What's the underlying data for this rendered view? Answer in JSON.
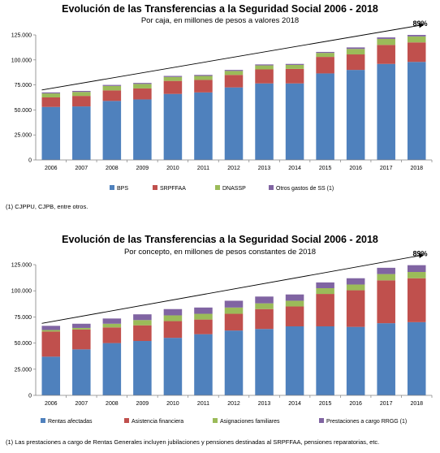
{
  "chart_data": [
    {
      "type": "bar",
      "stacked": true,
      "title": "Evolución de las Transferencias a la Seguridad Social 2006 - 2018",
      "subtitle": "Por caja, en millones de pesos a valores 2018",
      "categories": [
        "2006",
        "2007",
        "2008",
        "2009",
        "2010",
        "2011",
        "2012",
        "2013",
        "2014",
        "2015",
        "2016",
        "2017",
        "2018"
      ],
      "series": [
        {
          "name": "BPS",
          "color": "#4F81BD",
          "values": [
            53000,
            53500,
            59000,
            60500,
            66000,
            67500,
            72500,
            76500,
            76500,
            86500,
            90000,
            96000,
            98000
          ]
        },
        {
          "name": "SRPFFAA",
          "color": "#C0504D",
          "values": [
            9500,
            10500,
            10500,
            11000,
            13000,
            12500,
            12500,
            14000,
            14500,
            16500,
            15500,
            19000,
            19500
          ]
        },
        {
          "name": "DNASSP",
          "color": "#9BBB59",
          "values": [
            4000,
            4000,
            4500,
            4500,
            4000,
            4000,
            4000,
            4000,
            4000,
            4000,
            5500,
            6000,
            6000
          ]
        },
        {
          "name": "Otros gastos de SS (1)",
          "color": "#8064A2",
          "values": [
            1000,
            1000,
            1000,
            1000,
            1000,
            1000,
            1000,
            1000,
            1000,
            1000,
            1500,
            1500,
            1500
          ]
        }
      ],
      "yticks": [
        "0",
        "25.000",
        "50.000",
        "75.000",
        "100.000",
        "125.000"
      ],
      "ylim": [
        0,
        125000
      ],
      "annotation": "89%",
      "legend_position": "bottom",
      "footnote": "(1) CJPPU, CJPB, entre otros."
    },
    {
      "type": "bar",
      "stacked": true,
      "title": "Evolución de las Transferencias a la Seguridad Social 2006 - 2018",
      "subtitle": "Por concepto, en millones de pesos constantes de 2018",
      "categories": [
        "2006",
        "2007",
        "2008",
        "2009",
        "2010",
        "2011",
        "2012",
        "2013",
        "2014",
        "2015",
        "2016",
        "2017",
        "2018"
      ],
      "series": [
        {
          "name": "Rentas afectadas",
          "color": "#4F81BD",
          "values": [
            37000,
            44000,
            50000,
            52000,
            55000,
            58500,
            62000,
            63500,
            66000,
            66000,
            65500,
            69000,
            70000
          ]
        },
        {
          "name": "Asistencia financiera",
          "color": "#C0504D",
          "values": [
            24000,
            19000,
            15000,
            15000,
            16000,
            14000,
            16000,
            19000,
            19000,
            31000,
            35000,
            41000,
            42000
          ]
        },
        {
          "name": "Asignaciones familiares",
          "color": "#9BBB59",
          "values": [
            1500,
            1500,
            3500,
            5000,
            5500,
            5500,
            6000,
            5500,
            5500,
            5500,
            5500,
            6000,
            6000
          ]
        },
        {
          "name": "Prestaciones a cargo RRGG (1)",
          "color": "#8064A2",
          "values": [
            4000,
            4000,
            5000,
            5500,
            6000,
            6000,
            6500,
            6500,
            6000,
            5500,
            6000,
            6000,
            6500
          ]
        }
      ],
      "yticks": [
        "0",
        "25.000",
        "50.000",
        "75.000",
        "100.000",
        "125.000"
      ],
      "ylim": [
        0,
        125000
      ],
      "annotation": "89%",
      "legend_position": "bottom",
      "footnote": "(1) Las prestaciones a cargo de Rentas Generales incluyen jubilaciones y pensiones destinadas al SRPFFAA,  pensiones reparatorias, etc."
    }
  ]
}
